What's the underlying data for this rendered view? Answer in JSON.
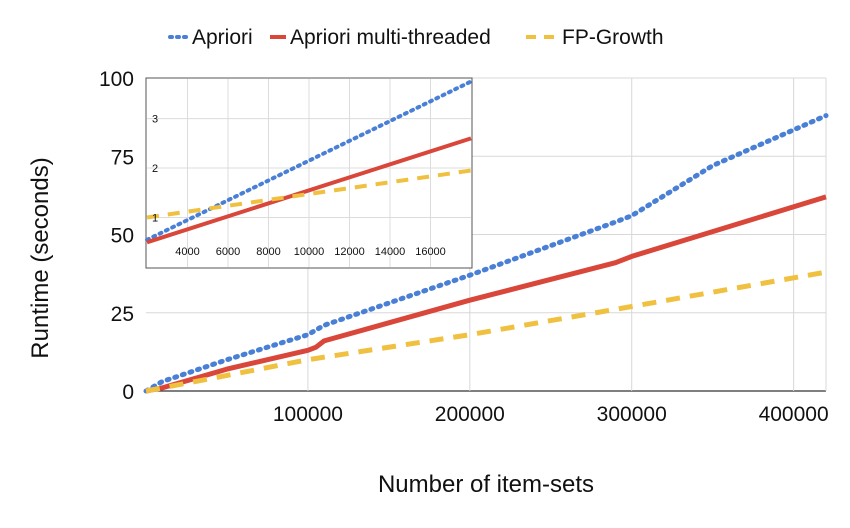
{
  "chart_data": [
    {
      "type": "line",
      "xlabel": "Number of item-sets",
      "ylabel": "Runtime (seconds)",
      "xlim": [
        0,
        420000
      ],
      "ylim": [
        0,
        100
      ],
      "x_ticks": [
        100000,
        200000,
        300000,
        400000
      ],
      "y_ticks": [
        0,
        25,
        50,
        75,
        100
      ],
      "grid": true,
      "legend_position": "top-center",
      "series": [
        {
          "name": "Apriori",
          "color": "#4a7fd6",
          "style": "dotted",
          "x": [
            0,
            10000,
            50000,
            100000,
            110000,
            200000,
            290000,
            300000,
            350000,
            420000
          ],
          "y": [
            0,
            3,
            10,
            18,
            21,
            37,
            54,
            56,
            72,
            88
          ]
        },
        {
          "name": "Apriori multi-threaded",
          "color": "#d9473b",
          "style": "solid",
          "x": [
            0,
            10000,
            50000,
            100000,
            105000,
            110000,
            200000,
            290000,
            300000,
            420000
          ],
          "y": [
            0,
            1,
            7,
            13,
            14,
            16,
            29,
            41,
            43,
            62
          ]
        },
        {
          "name": "FP-Growth",
          "color": "#f0c040",
          "style": "dashed",
          "x": [
            0,
            10000,
            50000,
            100000,
            200000,
            300000,
            420000
          ],
          "y": [
            0,
            1,
            5,
            10,
            18,
            27,
            38
          ]
        }
      ]
    },
    {
      "type": "line",
      "xlim": [
        2000,
        18000
      ],
      "ylim": [
        0,
        3.8
      ],
      "x_ticks": [
        4000,
        6000,
        8000,
        10000,
        12000,
        14000,
        16000
      ],
      "y_ticks": [
        1,
        2,
        3
      ],
      "grid": true,
      "series": [
        {
          "color": "#4a7fd6",
          "style": "dotted",
          "x": [
            2000,
            18000
          ],
          "y": [
            0.55,
            3.75
          ]
        },
        {
          "color": "#d9473b",
          "style": "solid",
          "x": [
            2000,
            18000
          ],
          "y": [
            0.5,
            2.6
          ]
        },
        {
          "color": "#f0c040",
          "style": "dashed",
          "x": [
            2000,
            18000
          ],
          "y": [
            1.0,
            1.95
          ]
        }
      ]
    }
  ]
}
